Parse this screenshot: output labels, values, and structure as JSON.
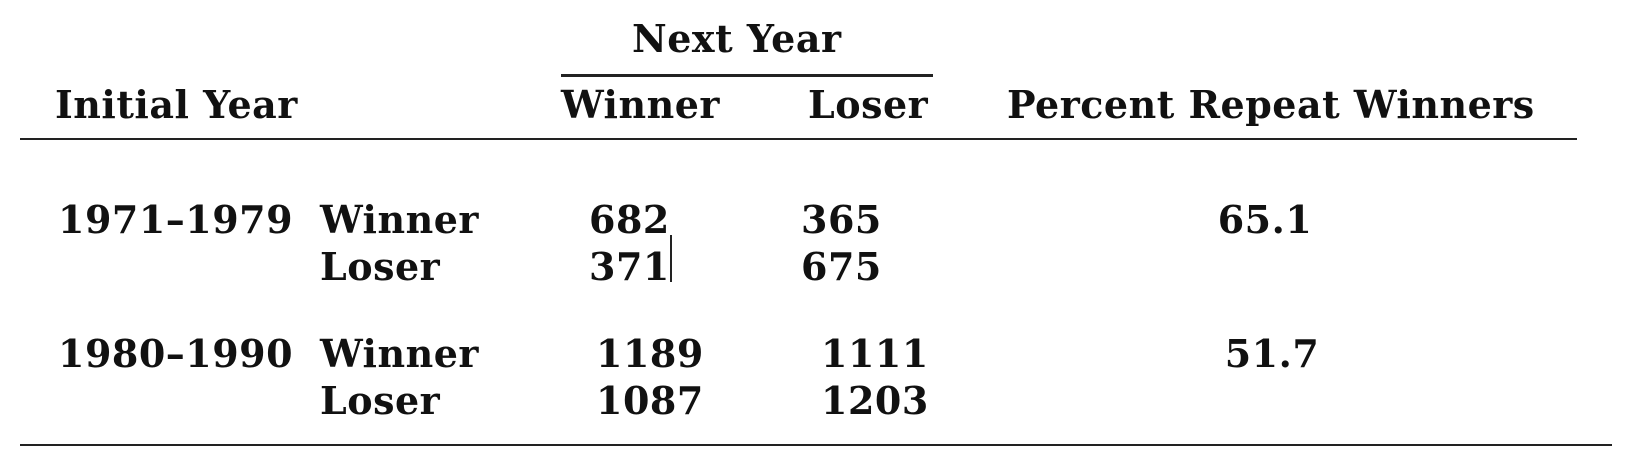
{
  "header": {
    "group_label": "Next Year",
    "initial_year": "Initial Year",
    "winner": "Winner",
    "loser": "Loser",
    "percent_repeat": "Percent Repeat Winners"
  },
  "rows": [
    {
      "period": "1971–1979",
      "winner_label": "Winner",
      "loser_label": "Loser",
      "winner_next_winner": "682",
      "winner_next_loser": "365",
      "loser_next_winner": "371",
      "loser_next_loser": "675",
      "percent": "65.1"
    },
    {
      "period": "1980–1990",
      "winner_label": "Winner",
      "loser_label": "Loser",
      "winner_next_winner": "1189",
      "winner_next_loser": "1111",
      "loser_next_winner": "1087",
      "loser_next_loser": "1203",
      "percent": "51.7"
    }
  ]
}
